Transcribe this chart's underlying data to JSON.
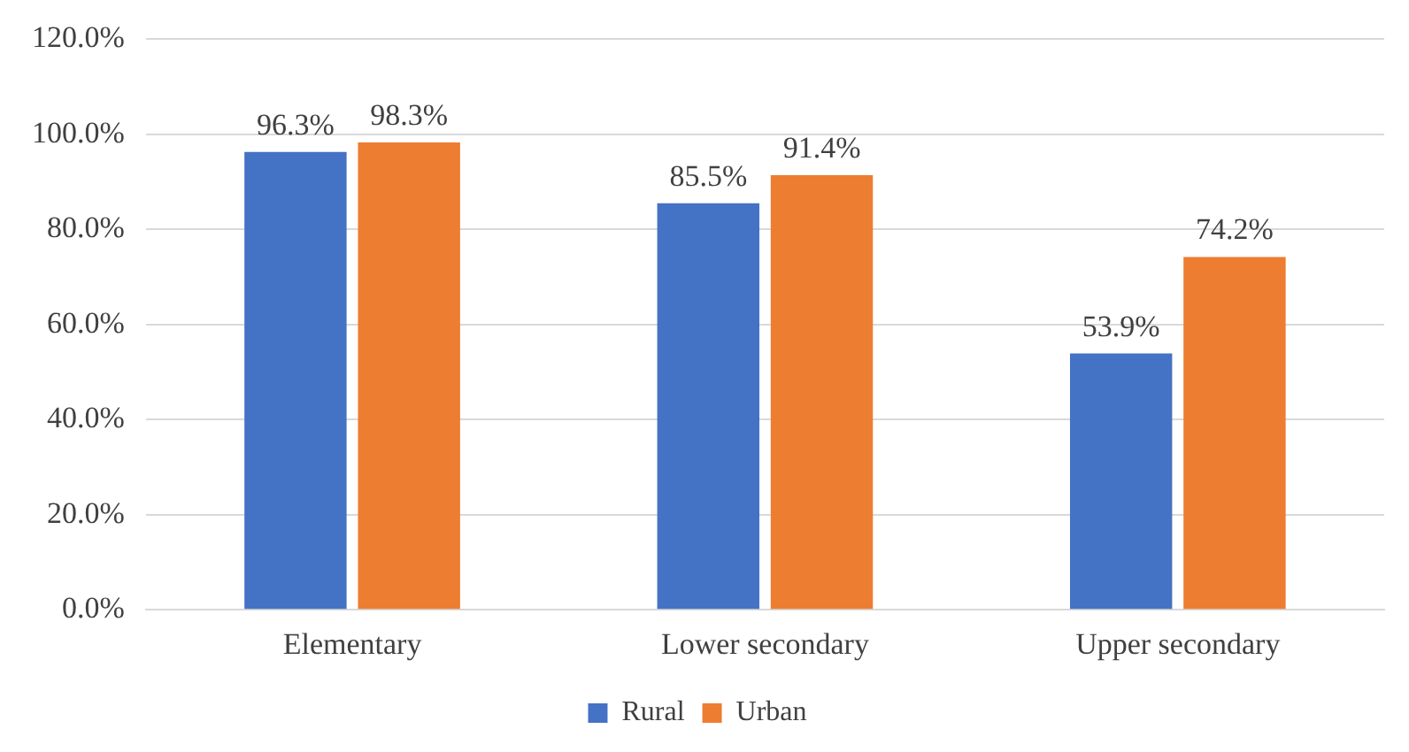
{
  "chart_data": {
    "type": "bar",
    "categories": [
      "Elementary",
      "Lower secondary",
      "Upper secondary"
    ],
    "series": [
      {
        "name": "Rural",
        "color": "#4472c4",
        "values": [
          96.3,
          85.5,
          53.9
        ],
        "value_labels": [
          "96.3%",
          "85.5%",
          "53.9%"
        ]
      },
      {
        "name": "Urban",
        "color": "#ed7d31",
        "values": [
          98.3,
          91.4,
          74.2
        ],
        "value_labels": [
          "98.3%",
          "91.4%",
          "74.2%"
        ]
      }
    ],
    "ylim": [
      0,
      120
    ],
    "yticks": [
      {
        "value": 0,
        "label": "0.0%"
      },
      {
        "value": 20,
        "label": "20.0%"
      },
      {
        "value": 40,
        "label": "40.0%"
      },
      {
        "value": 60,
        "label": "60.0%"
      },
      {
        "value": 80,
        "label": "80.0%"
      },
      {
        "value": 100,
        "label": "100.0%"
      },
      {
        "value": 120,
        "label": "120.0%"
      }
    ],
    "grid": "y",
    "legend": "bottom"
  }
}
